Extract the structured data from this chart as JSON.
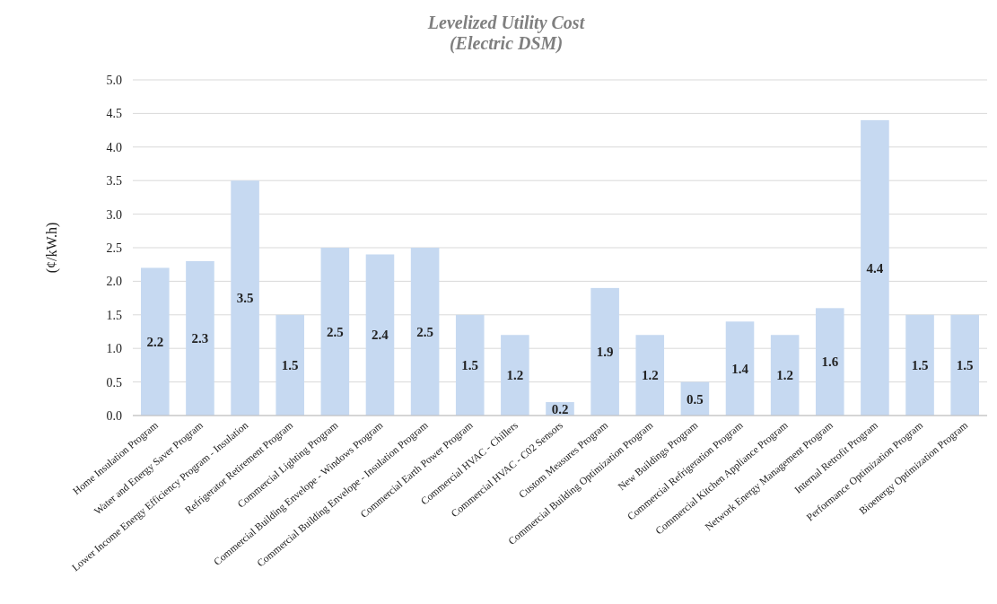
{
  "chart_data": {
    "type": "bar",
    "title": "Levelized Utility Cost\n(Electric DSM)",
    "ylabel": "(¢/kW.h)",
    "categories": [
      "Home Insulation Program",
      "Water and Energy Saver Program",
      "Lower Income Energy Efficiency Program - Insulation",
      "Refrigerator Retirement Program",
      "Commercial Lighting Program",
      "Commercial Building Envelope - Windows Program",
      "Commercial Building Envelope - Insulation Program",
      "Commercial Earth Power Program",
      "Commercial HVAC - Chillers",
      "Commercial HVAC - C02 Sensors",
      "Custom Measures Program",
      "Commercial Building Optimization Program",
      "New Buildings Program",
      "Commercial Refrigeration Program",
      "Commercial Kitchen Appliance Program",
      "Network Energy Management Program",
      "Internal Retrofit Program",
      "Performance Optimization Program",
      "Bioenergy Optimization Program"
    ],
    "values": [
      2.2,
      2.3,
      3.5,
      1.5,
      2.5,
      2.4,
      2.5,
      1.5,
      1.2,
      0.2,
      1.9,
      1.2,
      0.5,
      1.4,
      1.2,
      1.6,
      4.4,
      1.5,
      1.5
    ],
    "color": "#c6d9f1",
    "data_labels": true,
    "grid": "y",
    "ylim": [
      0,
      5
    ],
    "yticks": [
      {
        "value": 0,
        "label": "0.0"
      },
      {
        "value": 0.5,
        "label": "0.5"
      },
      {
        "value": 1,
        "label": "1.0"
      },
      {
        "value": 1.5,
        "label": "1.5"
      },
      {
        "value": 2,
        "label": "2.0"
      },
      {
        "value": 2.5,
        "label": "2.5"
      },
      {
        "value": 3,
        "label": "3.0"
      },
      {
        "value": 3.5,
        "label": "3.5"
      },
      {
        "value": 4,
        "label": "4.0"
      },
      {
        "value": 4.5,
        "label": "4.5"
      },
      {
        "value": 5,
        "label": "5.0"
      }
    ]
  }
}
